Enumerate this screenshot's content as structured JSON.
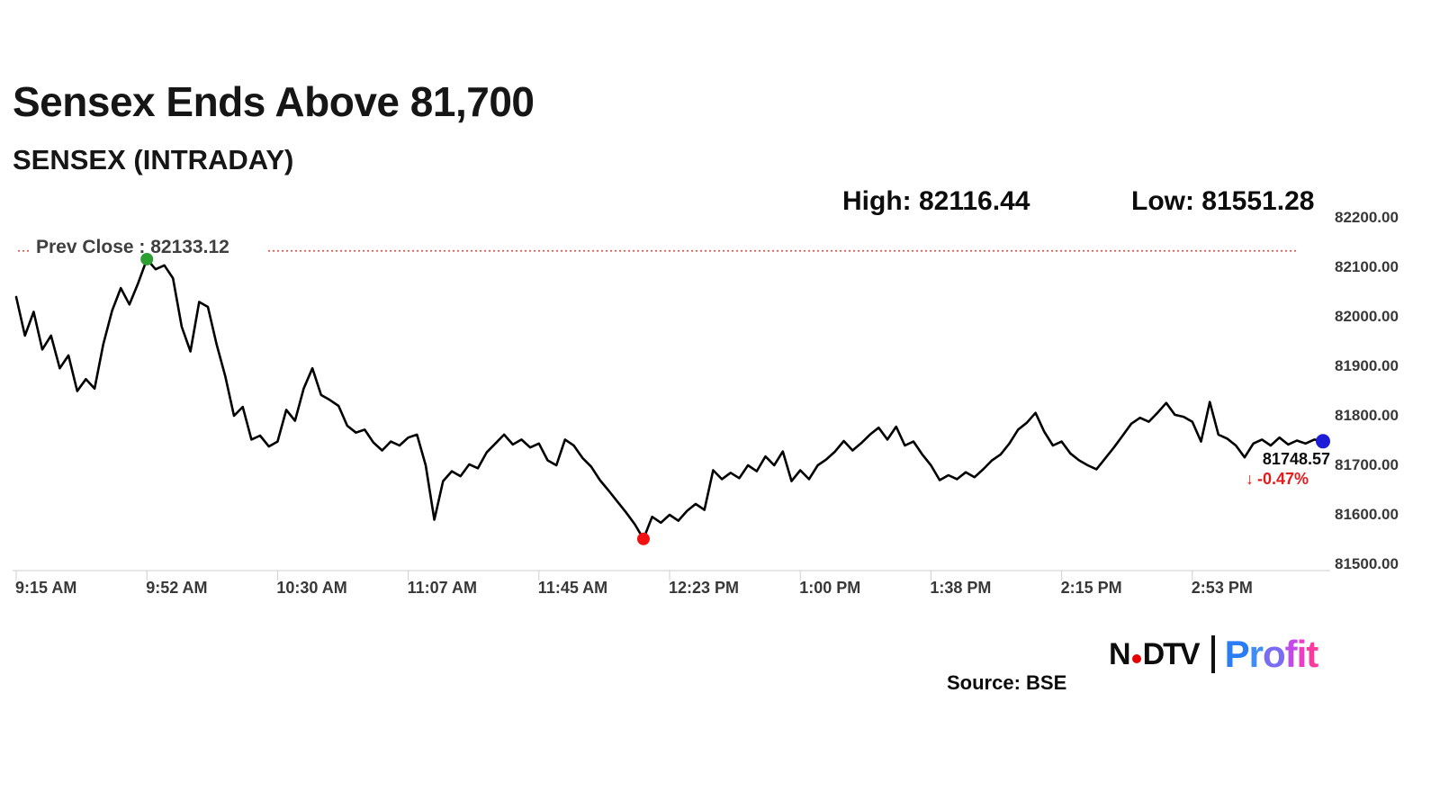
{
  "header": {
    "title": "Sensex Ends Above 81,700",
    "subtitle": "SENSEX (INTRADAY)",
    "high_text": "High: 82116.44",
    "low_text": "Low: 81551.28"
  },
  "chart_data": {
    "type": "line",
    "title": "SENSEX (INTRADAY)",
    "x_unit": "minutes since 9:15 AM",
    "x_start_minutes": 0,
    "x_end_minutes": 375,
    "point_interval_minutes": 2.5,
    "xticks": [
      "9:15 AM",
      "9:52 AM",
      "10:30 AM",
      "11:07 AM",
      "11:45 AM",
      "12:23 PM",
      "1:00 PM",
      "1:38 PM",
      "2:15 PM",
      "2:53 PM"
    ],
    "xtick_interval_minutes": 37.5,
    "yticks": [
      "82200.00",
      "82100.00",
      "82000.00",
      "81900.00",
      "81800.00",
      "81700.00",
      "81600.00",
      "81500.00"
    ],
    "ylim": [
      81500,
      82200
    ],
    "grid": false,
    "legend": false,
    "prev_close": {
      "label": "Prev Close : 82133.12",
      "value": 82133.12
    },
    "high": {
      "t": 37.5,
      "value": 82116.44
    },
    "low": {
      "t": 180,
      "value": 81551.28
    },
    "last": {
      "t": 375,
      "value": 81748.57,
      "change_pct": -0.47
    },
    "values": [
      82040,
      81962,
      82010,
      81934,
      81962,
      81896,
      81922,
      81850,
      81874,
      81855,
      81945,
      82012,
      82058,
      82025,
      82068,
      82116.44,
      82096,
      82104,
      82078,
      81980,
      81930,
      82030,
      82020,
      81945,
      81880,
      81800,
      81818,
      81752,
      81760,
      81738,
      81748,
      81812,
      81790,
      81855,
      81896,
      81842,
      81832,
      81820,
      81780,
      81766,
      81772,
      81746,
      81730,
      81748,
      81740,
      81756,
      81762,
      81700,
      81590,
      81668,
      81688,
      81678,
      81702,
      81694,
      81726,
      81744,
      81762,
      81742,
      81752,
      81736,
      81744,
      81710,
      81700,
      81752,
      81740,
      81715,
      81697,
      81670,
      81649,
      81627,
      81605,
      81581,
      81551.28,
      81596,
      81584,
      81600,
      81588,
      81608,
      81622,
      81610,
      81690,
      81672,
      81685,
      81674,
      81700,
      81688,
      81718,
      81700,
      81728,
      81668,
      81690,
      81672,
      81700,
      81712,
      81728,
      81749,
      81730,
      81745,
      81762,
      81776,
      81752,
      81778,
      81740,
      81748,
      81722,
      81700,
      81670,
      81680,
      81672,
      81686,
      81676,
      81692,
      81710,
      81722,
      81744,
      81772,
      81786,
      81806,
      81768,
      81740,
      81748,
      81724,
      81710,
      81700,
      81692,
      81714,
      81736,
      81760,
      81784,
      81796,
      81788,
      81806,
      81826,
      81802,
      81798,
      81788,
      81748,
      81828,
      81762,
      81754,
      81740,
      81716,
      81744,
      81752,
      81740,
      81756,
      81742,
      81750,
      81744,
      81752,
      81748.57
    ]
  },
  "annotations": {
    "last_price": "81748.57",
    "down_arrow": "↓",
    "change_text": "-0.47%"
  },
  "footer": {
    "source": "Source: BSE"
  },
  "brand": {
    "ndtv_n": "N",
    "ndtv_dtv": "DTV",
    "profit_letters": [
      {
        "ch": "P",
        "color": "#2a7df5"
      },
      {
        "ch": "r",
        "color": "#3f8df8"
      },
      {
        "ch": "o",
        "color": "#7a6cf2"
      },
      {
        "ch": "f",
        "color": "#c24ae8"
      },
      {
        "ch": "i",
        "color": "#ee3fc4"
      },
      {
        "ch": "t",
        "color": "#fb3a9d"
      }
    ]
  },
  "colors": {
    "line": "#000000",
    "prev_close_line": "#e4564e",
    "axis": "#cfcfcf",
    "high_marker": "#2d9e32",
    "low_marker": "#f21111",
    "last_marker": "#1d1dd8",
    "change_red": "#e31b1b",
    "logo_dot": "#e60000"
  }
}
